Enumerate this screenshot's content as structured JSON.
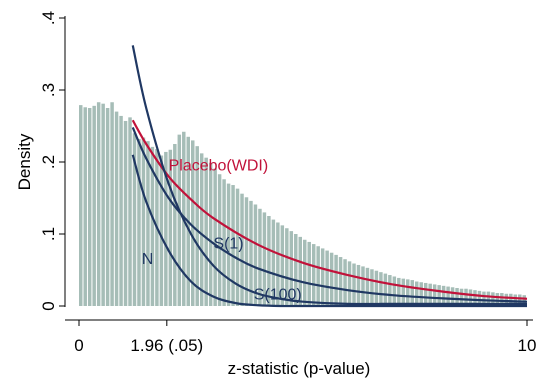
{
  "chart_data": {
    "type": "histogram",
    "xlabel": "z-statistic (p-value)",
    "ylabel": "Density",
    "xlim": [
      0,
      10
    ],
    "ylim": [
      0,
      0.4
    ],
    "x_ticks": [
      {
        "value": 0,
        "label": "0"
      },
      {
        "value": 1.96,
        "label": "1.96 (.05)"
      },
      {
        "value": 10,
        "label": "10"
      }
    ],
    "y_ticks": [
      {
        "value": 0,
        "label": "0"
      },
      {
        "value": 0.1,
        "label": ".1"
      },
      {
        "value": 0.2,
        "label": ".2"
      },
      {
        "value": 0.3,
        "label": ".3"
      },
      {
        "value": 0.4,
        "label": ".4"
      }
    ],
    "histogram": {
      "bin_width": 0.1,
      "color": "#a6bdb7",
      "densities": [
        0.279,
        0.276,
        0.275,
        0.278,
        0.283,
        0.281,
        0.275,
        0.283,
        0.27,
        0.264,
        0.257,
        0.262,
        0.24,
        0.232,
        0.234,
        0.229,
        0.221,
        0.218,
        0.209,
        0.214,
        0.217,
        0.225,
        0.238,
        0.242,
        0.235,
        0.23,
        0.222,
        0.212,
        0.206,
        0.199,
        0.191,
        0.183,
        0.176,
        0.17,
        0.168,
        0.163,
        0.156,
        0.151,
        0.146,
        0.141,
        0.135,
        0.13,
        0.125,
        0.12,
        0.116,
        0.112,
        0.108,
        0.104,
        0.1,
        0.096,
        0.092,
        0.089,
        0.086,
        0.083,
        0.08,
        0.077,
        0.074,
        0.071,
        0.068,
        0.065,
        0.062,
        0.059,
        0.057,
        0.055,
        0.053,
        0.051,
        0.049,
        0.047,
        0.045,
        0.043,
        0.041,
        0.039,
        0.038,
        0.037,
        0.036,
        0.034,
        0.033,
        0.032,
        0.031,
        0.03,
        0.029,
        0.028,
        0.027,
        0.026,
        0.025,
        0.024,
        0.024,
        0.023,
        0.022,
        0.021,
        0.02,
        0.02,
        0.019,
        0.018,
        0.018,
        0.017,
        0.017,
        0.016,
        0.016,
        0.015
      ]
    },
    "series": [
      {
        "name": "Placebo(WDI)",
        "color": "#c1123a",
        "x": [
          1.2,
          1.5,
          2,
          2.5,
          3,
          4,
          5,
          6,
          7,
          8,
          9,
          10
        ],
        "values": [
          0.258,
          0.225,
          0.18,
          0.148,
          0.122,
          0.085,
          0.06,
          0.043,
          0.03,
          0.021,
          0.014,
          0.01
        ]
      },
      {
        "name": "S(1)",
        "color": "#203863",
        "x": [
          1.2,
          1.5,
          2,
          2.5,
          3,
          3.5,
          4,
          5,
          6,
          7,
          8,
          9,
          10
        ],
        "values": [
          0.248,
          0.205,
          0.15,
          0.113,
          0.087,
          0.067,
          0.052,
          0.033,
          0.022,
          0.015,
          0.011,
          0.008,
          0.006
        ]
      },
      {
        "name": "S(100)",
        "color": "#203863",
        "x": [
          1.2,
          1.5,
          2,
          2.5,
          3,
          3.5,
          4,
          4.5,
          5,
          6,
          7,
          8,
          9,
          10
        ],
        "values": [
          0.362,
          0.275,
          0.17,
          0.1,
          0.056,
          0.031,
          0.017,
          0.01,
          0.006,
          0.003,
          0.003,
          0.003,
          0.003,
          0.003
        ]
      },
      {
        "name": "N",
        "color": "#203863",
        "x": [
          1.2,
          1.5,
          2,
          2.5,
          3,
          3.5,
          4,
          4.5,
          5,
          6,
          8,
          10
        ],
        "values": [
          0.21,
          0.145,
          0.077,
          0.034,
          0.013,
          0.004,
          0.001,
          0.0,
          0.0,
          0.0,
          0.0,
          0.0
        ]
      }
    ],
    "labels": [
      {
        "text": "Placebo(WDI)",
        "x": 2.0,
        "y": 0.188,
        "color": "#c1123a"
      },
      {
        "text": "S(1)",
        "x": 3.0,
        "y": 0.08,
        "color": "#203863"
      },
      {
        "text": "N",
        "x": 1.4,
        "y": 0.058,
        "color": "#203863"
      },
      {
        "text": "S(100)",
        "x": 3.9,
        "y": 0.009,
        "color": "#203863"
      }
    ]
  }
}
